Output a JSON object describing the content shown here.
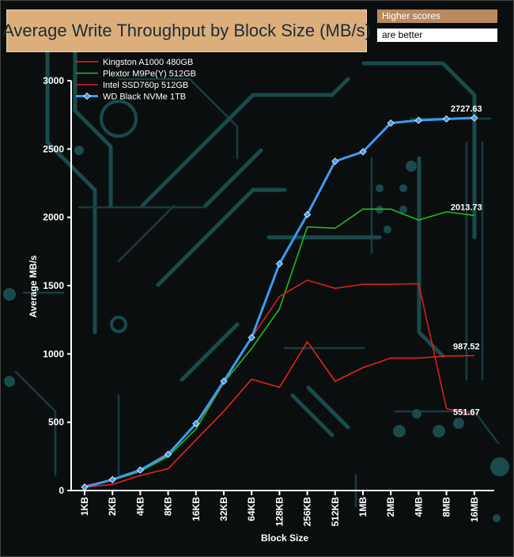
{
  "chart_data": {
    "type": "line",
    "title": "Average Write Throughput by Block Size (MB/s)",
    "notes": [
      "Higher scores",
      "are better"
    ],
    "xlabel": "Block Size",
    "ylabel": "Average MB/s",
    "ylim": [
      0,
      3000
    ],
    "yticks": [
      0,
      500,
      1000,
      1500,
      2000,
      2500,
      3000
    ],
    "grid": false,
    "legend_position": "top-left",
    "categories": [
      "1KB",
      "2KB",
      "4KB",
      "8KB",
      "16KB",
      "32KB",
      "64KB",
      "128KB",
      "256KB",
      "512KB",
      "1MB",
      "2MB",
      "4MB",
      "8MB",
      "16MB"
    ],
    "series": [
      {
        "name": "Kingston A1000 480GB",
        "color": "#e8231f",
        "marker": false,
        "values": [
          25,
          45,
          110,
          160,
          370,
          580,
          815,
          755,
          1090,
          800,
          900,
          970,
          970,
          985,
          987.52
        ],
        "end_label": "987.52"
      },
      {
        "name": "Plextor M9Pe(Y) 512GB",
        "color": "#1fbd1f",
        "marker": false,
        "values": [
          30,
          75,
          140,
          250,
          450,
          790,
          1040,
          1330,
          1930,
          1920,
          2060,
          2060,
          1980,
          2040,
          2013.73
        ],
        "end_label": "2013.73"
      },
      {
        "name": "Intel SSD760p 512GB",
        "color": "#d91e1e",
        "marker": false,
        "values": [
          35,
          80,
          150,
          275,
          480,
          790,
          1120,
          1420,
          1540,
          1480,
          1510,
          1510,
          1515,
          600,
          551.67
        ],
        "end_label": "551.67"
      },
      {
        "name": "WD Black NVMe 1TB",
        "color": "#3d9bf0",
        "marker": true,
        "values": [
          25,
          80,
          150,
          265,
          490,
          800,
          1120,
          1660,
          2020,
          2410,
          2480,
          2690,
          2710,
          2720,
          2727.63
        ],
        "end_label": "2727.63"
      }
    ]
  }
}
